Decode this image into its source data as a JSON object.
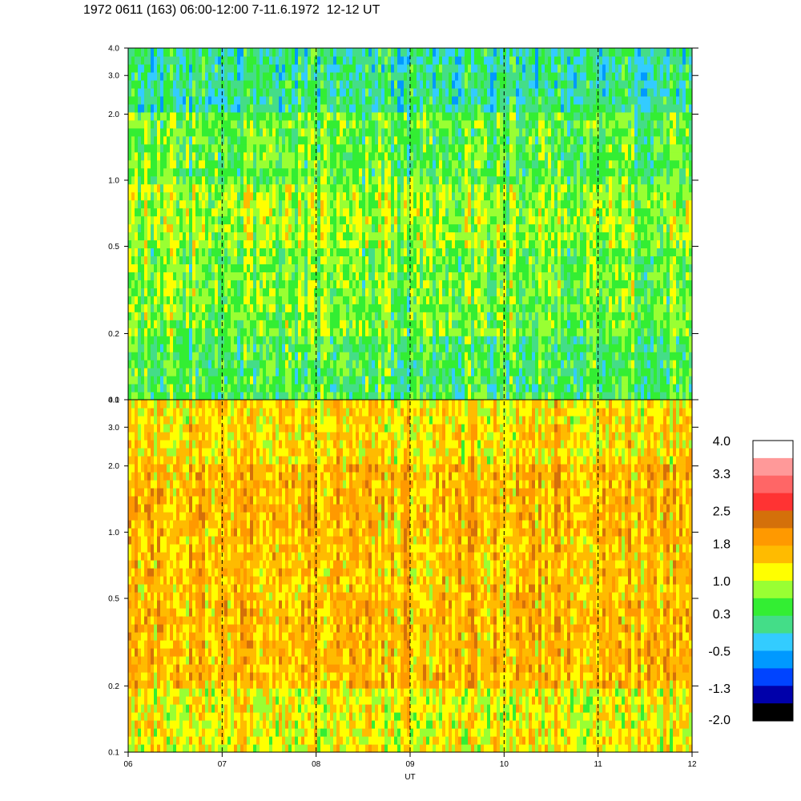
{
  "title": "1972 0611 (163) 06:00-12:00 7-11.6.1972  12-12 UT",
  "chart_data": {
    "type": "heatmap",
    "xlabel": "UT",
    "x_ticks": [
      "06",
      "07",
      "08",
      "09",
      "10",
      "11",
      "12"
    ],
    "x_range": [
      6,
      12
    ],
    "dashed_hour_lines": [
      7,
      8,
      9,
      10,
      11
    ],
    "panels": [
      {
        "name": "upper",
        "y_scale": "log",
        "ylim": [
          0.1,
          4.0
        ],
        "y_ticks": [
          "0.1",
          "0.2",
          "0.5",
          "1.0",
          "2.0",
          "3.0",
          "4.0"
        ],
        "dominant_level_by_band": [
          {
            "band": "0.1-0.2",
            "level": 0.3
          },
          {
            "band": "0.2-0.5",
            "level": 0.6
          },
          {
            "band": "0.5-1.0",
            "level": 0.8
          },
          {
            "band": "1.0-2.0",
            "level": 0.5
          },
          {
            "band": "2.0-4.0",
            "level": 0.0
          }
        ]
      },
      {
        "name": "lower",
        "y_scale": "log",
        "ylim": [
          0.1,
          4.0
        ],
        "y_ticks": [
          "0.1",
          "0.2",
          "0.5",
          "1.0",
          "2.0",
          "3.0",
          "4.0"
        ],
        "dominant_level_by_band": [
          {
            "band": "0.1-0.2",
            "level": 1.2
          },
          {
            "band": "0.2-0.5",
            "level": 1.7
          },
          {
            "band": "0.5-1.0",
            "level": 1.6
          },
          {
            "band": "1.0-2.0",
            "level": 1.7
          },
          {
            "band": "2.0-4.0",
            "level": 1.4
          }
        ]
      }
    ],
    "colorbar": {
      "range": [
        -2.0,
        4.0
      ],
      "labels": [
        "4.0",
        "3.3",
        "2.5",
        "1.8",
        "1.0",
        "0.3",
        "-0.5",
        "-1.3",
        "-2.0"
      ],
      "colors": [
        "#ffffff",
        "#ff9999",
        "#ff6666",
        "#ff3333",
        "#d4700a",
        "#ff9900",
        "#ffbb00",
        "#ffff00",
        "#99ff33",
        "#33ee33",
        "#44dd88",
        "#33ccff",
        "#0099ff",
        "#0044ff",
        "#0000aa",
        "#000000"
      ]
    }
  }
}
